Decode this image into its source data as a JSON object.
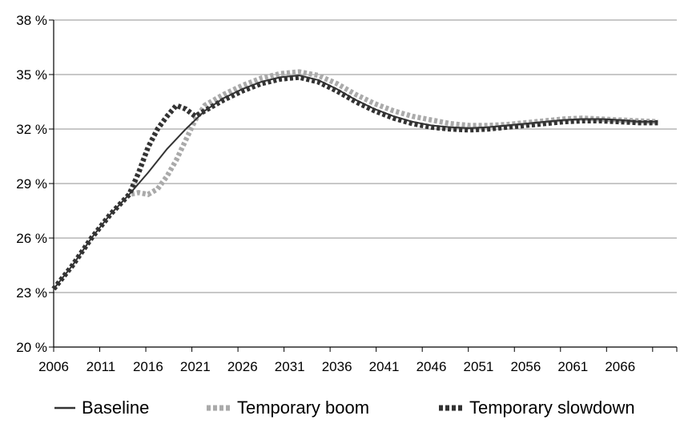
{
  "chart_data": {
    "type": "line",
    "title": "",
    "xlabel": "",
    "ylabel": "",
    "ylim": [
      20,
      38
    ],
    "yticks": [
      20,
      23,
      26,
      29,
      32,
      35,
      38
    ],
    "ytick_labels": [
      "20 %",
      "23 %",
      "26 %",
      "29 %",
      "32 %",
      "35 %",
      "38 %"
    ],
    "xlim": [
      2006,
      2072
    ],
    "xticks": [
      2006,
      2011,
      2016,
      2021,
      2026,
      2031,
      2036,
      2041,
      2046,
      2051,
      2056,
      2061,
      2066
    ],
    "xtick_labels": [
      "2006",
      "2011",
      "2016",
      "2021",
      "2026",
      "2031",
      "2036",
      "2041",
      "2046",
      "2051",
      "2056",
      "2061",
      "2066"
    ],
    "grid": true,
    "legend_position": "bottom",
    "series": [
      {
        "name": "Baseline",
        "color": "#333333",
        "style": "solid",
        "points": [
          [
            2006,
            23.2
          ],
          [
            2008,
            24.5
          ],
          [
            2010,
            26.0
          ],
          [
            2012,
            27.3
          ],
          [
            2014,
            28.4
          ],
          [
            2016,
            29.6
          ],
          [
            2018,
            30.9
          ],
          [
            2020,
            32.0
          ],
          [
            2022,
            33.0
          ],
          [
            2024,
            33.7
          ],
          [
            2026,
            34.2
          ],
          [
            2028,
            34.6
          ],
          [
            2030,
            34.85
          ],
          [
            2032,
            34.95
          ],
          [
            2034,
            34.7
          ],
          [
            2036,
            34.2
          ],
          [
            2038,
            33.6
          ],
          [
            2040,
            33.1
          ],
          [
            2042,
            32.7
          ],
          [
            2044,
            32.4
          ],
          [
            2046,
            32.2
          ],
          [
            2048,
            32.1
          ],
          [
            2050,
            32.05
          ],
          [
            2052,
            32.1
          ],
          [
            2054,
            32.2
          ],
          [
            2056,
            32.3
          ],
          [
            2058,
            32.4
          ],
          [
            2060,
            32.5
          ],
          [
            2062,
            32.55
          ],
          [
            2064,
            32.55
          ],
          [
            2066,
            32.5
          ],
          [
            2068,
            32.4
          ],
          [
            2070,
            32.4
          ]
        ]
      },
      {
        "name": "Temporary boom",
        "color": "#aaaaaa",
        "style": "dotted",
        "points": [
          [
            2006,
            23.2
          ],
          [
            2008,
            24.5
          ],
          [
            2010,
            26.0
          ],
          [
            2012,
            27.3
          ],
          [
            2014,
            28.4
          ],
          [
            2015,
            28.5
          ],
          [
            2016,
            28.4
          ],
          [
            2017,
            28.7
          ],
          [
            2018,
            29.4
          ],
          [
            2019,
            30.3
          ],
          [
            2020,
            31.4
          ],
          [
            2021,
            32.5
          ],
          [
            2022,
            33.3
          ],
          [
            2024,
            33.9
          ],
          [
            2026,
            34.4
          ],
          [
            2028,
            34.8
          ],
          [
            2030,
            35.05
          ],
          [
            2032,
            35.15
          ],
          [
            2034,
            34.95
          ],
          [
            2036,
            34.5
          ],
          [
            2038,
            33.9
          ],
          [
            2040,
            33.4
          ],
          [
            2042,
            33.0
          ],
          [
            2044,
            32.7
          ],
          [
            2046,
            32.5
          ],
          [
            2048,
            32.3
          ],
          [
            2050,
            32.2
          ],
          [
            2052,
            32.2
          ],
          [
            2054,
            32.25
          ],
          [
            2056,
            32.35
          ],
          [
            2058,
            32.45
          ],
          [
            2060,
            32.55
          ],
          [
            2062,
            32.6
          ],
          [
            2064,
            32.55
          ],
          [
            2066,
            32.5
          ],
          [
            2068,
            32.45
          ],
          [
            2070,
            32.4
          ]
        ]
      },
      {
        "name": "Temporary slowdown",
        "color": "#333333",
        "style": "dotted",
        "points": [
          [
            2006,
            23.2
          ],
          [
            2008,
            24.5
          ],
          [
            2010,
            26.0
          ],
          [
            2012,
            27.3
          ],
          [
            2014,
            28.4
          ],
          [
            2015,
            29.6
          ],
          [
            2016,
            31.0
          ],
          [
            2017,
            32.0
          ],
          [
            2018,
            32.7
          ],
          [
            2019,
            33.3
          ],
          [
            2020,
            33.1
          ],
          [
            2021,
            32.7
          ],
          [
            2022,
            33.0
          ],
          [
            2024,
            33.6
          ],
          [
            2026,
            34.1
          ],
          [
            2028,
            34.5
          ],
          [
            2030,
            34.75
          ],
          [
            2032,
            34.85
          ],
          [
            2034,
            34.6
          ],
          [
            2036,
            34.1
          ],
          [
            2038,
            33.5
          ],
          [
            2040,
            33.0
          ],
          [
            2042,
            32.6
          ],
          [
            2044,
            32.3
          ],
          [
            2046,
            32.1
          ],
          [
            2048,
            32.0
          ],
          [
            2050,
            31.95
          ],
          [
            2052,
            32.0
          ],
          [
            2054,
            32.1
          ],
          [
            2056,
            32.2
          ],
          [
            2058,
            32.3
          ],
          [
            2060,
            32.4
          ],
          [
            2062,
            32.45
          ],
          [
            2064,
            32.45
          ],
          [
            2066,
            32.4
          ],
          [
            2068,
            32.35
          ],
          [
            2070,
            32.35
          ]
        ]
      }
    ]
  }
}
